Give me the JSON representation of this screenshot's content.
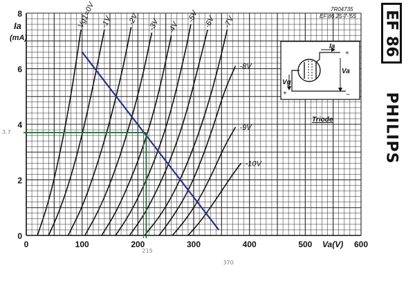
{
  "chart_data": {
    "type": "line",
    "ylabel_top": "Ia",
    "ylabel_unit": "(mA)",
    "xlabel": "Va(V)",
    "xlim": [
      0,
      600
    ],
    "ylim": [
      0,
      8
    ],
    "x_ticks": [
      0,
      100,
      200,
      300,
      400,
      500,
      600
    ],
    "y_ticks": [
      0,
      2,
      4,
      6,
      8
    ],
    "grid": true,
    "ref_code": "7R04735",
    "ref_date": "EF 86  25-7-'55",
    "inset_label": "Triode",
    "inset_labels": {
      "ia": "Ia",
      "va": "Va",
      "vg": "Vg",
      "plus": "+",
      "minus": "−"
    },
    "series": [
      {
        "name": "Vg1=0V",
        "dashed": true,
        "points": [
          [
            20,
            0
          ],
          [
            40,
            1.2
          ],
          [
            60,
            2.9
          ],
          [
            80,
            5
          ],
          [
            98,
            7.4
          ]
        ]
      },
      {
        "name": "-1V",
        "dashed": true,
        "points": [
          [
            40,
            0
          ],
          [
            60,
            0.9
          ],
          [
            80,
            2.1
          ],
          [
            100,
            3.6
          ],
          [
            120,
            5.4
          ],
          [
            140,
            7.4
          ]
        ]
      },
      {
        "name": "-2V",
        "dashed": true,
        "points": [
          [
            75,
            0
          ],
          [
            100,
            1.0
          ],
          [
            125,
            2.4
          ],
          [
            150,
            4.1
          ],
          [
            172,
            5.9
          ],
          [
            188,
            7.5
          ]
        ]
      },
      {
        "name": "-3V",
        "dashed": true,
        "points": [
          [
            105,
            0
          ],
          [
            130,
            0.9
          ],
          [
            155,
            2.1
          ],
          [
            180,
            3.6
          ],
          [
            205,
            5.4
          ],
          [
            225,
            7.3
          ]
        ]
      },
      {
        "name": "-4V",
        "dashed": true,
        "points": [
          [
            135,
            0
          ],
          [
            160,
            0.8
          ],
          [
            185,
            1.9
          ],
          [
            210,
            3.2
          ],
          [
            235,
            4.9
          ],
          [
            260,
            7.2
          ]
        ]
      },
      {
        "name": "-5V",
        "dashed": true,
        "points": [
          [
            160,
            0
          ],
          [
            185,
            0.75
          ],
          [
            210,
            1.75
          ],
          [
            235,
            2.95
          ],
          [
            260,
            4.5
          ],
          [
            285,
            6.6
          ],
          [
            295,
            7.6
          ]
        ]
      },
      {
        "name": "-6V",
        "dashed": true,
        "points": [
          [
            185,
            0
          ],
          [
            210,
            0.7
          ],
          [
            235,
            1.65
          ],
          [
            260,
            2.8
          ],
          [
            285,
            4.25
          ],
          [
            310,
            6.2
          ],
          [
            325,
            7.4
          ]
        ]
      },
      {
        "name": "-7V",
        "dashed": true,
        "points": [
          [
            212,
            0
          ],
          [
            240,
            0.7
          ],
          [
            265,
            1.55
          ],
          [
            290,
            2.65
          ],
          [
            315,
            4.0
          ],
          [
            340,
            5.7
          ],
          [
            360,
            7.4
          ]
        ]
      },
      {
        "name": "-8V",
        "dashed": false,
        "points": [
          [
            238,
            0
          ],
          [
            262,
            0.65
          ],
          [
            288,
            1.5
          ],
          [
            312,
            2.6
          ],
          [
            335,
            3.9
          ],
          [
            355,
            5.2
          ],
          [
            375,
            6.1
          ]
        ]
      },
      {
        "name": "-9V",
        "dashed": false,
        "points": [
          [
            262,
            0
          ],
          [
            285,
            0.55
          ],
          [
            310,
            1.3
          ],
          [
            335,
            2.3
          ],
          [
            355,
            3.2
          ],
          [
            375,
            3.9
          ]
        ]
      },
      {
        "name": "-10V",
        "dashed": false,
        "points": [
          [
            290,
            0
          ],
          [
            310,
            0.45
          ],
          [
            330,
            1.0
          ],
          [
            350,
            1.6
          ],
          [
            370,
            2.2
          ],
          [
            385,
            2.6
          ]
        ]
      }
    ],
    "load_line": {
      "x": [
        100,
        345
      ],
      "y": [
        6.6,
        0.2
      ]
    },
    "operating_point": {
      "x": 215,
      "y": 3.7
    },
    "annotations": {
      "y_value": "3.7",
      "x_value": "215",
      "x_extra": "370"
    }
  },
  "brand": {
    "tube": "EF 86",
    "maker": "PHILIPS"
  }
}
